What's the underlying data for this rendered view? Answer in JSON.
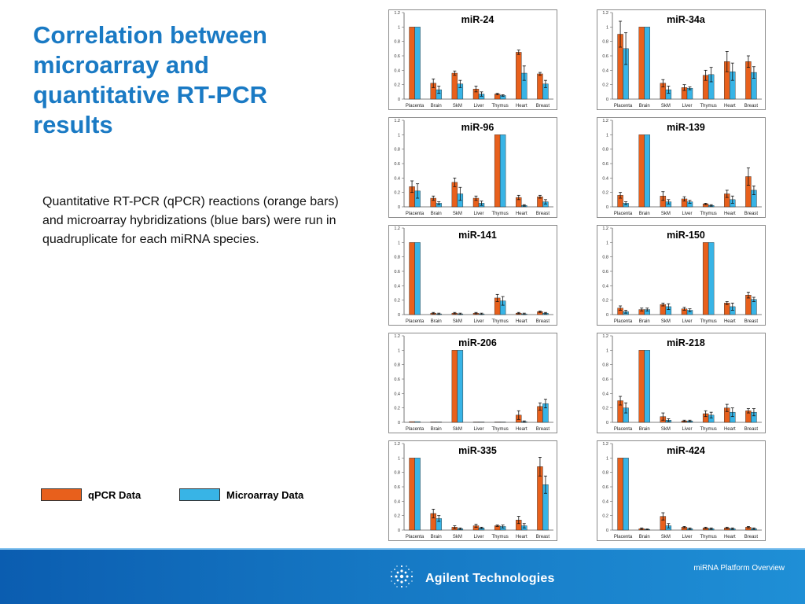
{
  "slide": {
    "title": "Correlation between microarray and quantitative RT-PCR results",
    "description": "Quantitative RT-PCR (qPCR) reactions (orange bars) and microarray hybridizations (blue bars) were run in quadruplicate for each miRNA species."
  },
  "legend": [
    {
      "label": "qPCR Data",
      "color": "#e8601c"
    },
    {
      "label": "Microarray Data",
      "color": "#38b4e6"
    }
  ],
  "colors": {
    "qpcr": "#e8601c",
    "microarray": "#38b4e6",
    "title": "#1a7ac4",
    "footer": "#1577c3"
  },
  "footer": {
    "brand": "Agilent Technologies",
    "caption": "miRNA Platform Overview",
    "logo_icon": "agilent-spark-icon"
  },
  "chart_data": [
    {
      "type": "bar",
      "title": "miR-24",
      "ylim": [
        0,
        1.2
      ],
      "yticks": [
        0,
        0.2,
        0.4,
        0.6,
        0.8,
        1,
        1.2
      ],
      "categories": [
        "Placenta",
        "Brain",
        "SkM",
        "Liver",
        "Thymus",
        "Heart",
        "Breast"
      ],
      "series": [
        {
          "values": [
            1,
            0.22,
            0.36,
            0.14,
            0.07,
            0.65,
            0.35
          ],
          "errors": [
            0,
            0.06,
            0.03,
            0.04,
            0.01,
            0.03,
            0.02
          ]
        },
        {
          "values": [
            1,
            0.13,
            0.21,
            0.07,
            0.05,
            0.36,
            0.21
          ],
          "errors": [
            0,
            0.05,
            0.05,
            0.03,
            0.01,
            0.1,
            0.05
          ]
        }
      ]
    },
    {
      "type": "bar",
      "title": "miR-34a",
      "ylim": [
        0,
        1.2
      ],
      "yticks": [
        0,
        0.2,
        0.4,
        0.6,
        0.8,
        1,
        1.2
      ],
      "categories": [
        "Placenta",
        "Brain",
        "SkM",
        "Liver",
        "Thymus",
        "Heart",
        "Breast"
      ],
      "series": [
        {
          "values": [
            0.9,
            1,
            0.22,
            0.16,
            0.33,
            0.52,
            0.52
          ],
          "errors": [
            0.18,
            0,
            0.05,
            0.04,
            0.07,
            0.14,
            0.08
          ]
        },
        {
          "values": [
            0.7,
            1,
            0.13,
            0.15,
            0.34,
            0.38,
            0.37
          ],
          "errors": [
            0.22,
            0,
            0.05,
            0.02,
            0.1,
            0.12,
            0.08
          ]
        }
      ]
    },
    {
      "type": "bar",
      "title": "miR-96",
      "ylim": [
        0,
        1.2
      ],
      "yticks": [
        0,
        0.2,
        0.4,
        0.6,
        0.8,
        1,
        1.2
      ],
      "categories": [
        "Placenta",
        "Brain",
        "SkM",
        "Liver",
        "Thymus",
        "Heart",
        "Breast"
      ],
      "series": [
        {
          "values": [
            0.28,
            0.12,
            0.34,
            0.12,
            1,
            0.13,
            0.14
          ],
          "errors": [
            0.08,
            0.03,
            0.06,
            0.03,
            0,
            0.03,
            0.02
          ]
        },
        {
          "values": [
            0.22,
            0.05,
            0.18,
            0.05,
            1,
            0.02,
            0.07
          ],
          "errors": [
            0.1,
            0.02,
            0.09,
            0.03,
            0,
            0.01,
            0.03
          ]
        }
      ]
    },
    {
      "type": "bar",
      "title": "miR-139",
      "ylim": [
        0,
        1.2
      ],
      "yticks": [
        0,
        0.2,
        0.4,
        0.6,
        0.8,
        1,
        1.2
      ],
      "categories": [
        "Placenta",
        "Brain",
        "SkM",
        "Liver",
        "Thymus",
        "Heart",
        "Breast"
      ],
      "series": [
        {
          "values": [
            0.16,
            1,
            0.15,
            0.11,
            0.04,
            0.18,
            0.42
          ],
          "errors": [
            0.04,
            0,
            0.06,
            0.03,
            0.01,
            0.05,
            0.12
          ]
        },
        {
          "values": [
            0.05,
            1,
            0.07,
            0.07,
            0.02,
            0.1,
            0.23
          ],
          "errors": [
            0.02,
            0,
            0.03,
            0.02,
            0.01,
            0.05,
            0.06
          ]
        }
      ]
    },
    {
      "type": "bar",
      "title": "miR-141",
      "ylim": [
        0,
        1.2
      ],
      "yticks": [
        0,
        0.2,
        0.4,
        0.6,
        0.8,
        1,
        1.2
      ],
      "categories": [
        "Placenta",
        "Brain",
        "SkM",
        "Liver",
        "Thymus",
        "Heart",
        "Breast"
      ],
      "series": [
        {
          "values": [
            1,
            0.02,
            0.02,
            0.02,
            0.23,
            0.02,
            0.04
          ],
          "errors": [
            0,
            0.01,
            0.01,
            0.01,
            0.05,
            0.01,
            0.01
          ]
        },
        {
          "values": [
            1,
            0.01,
            0.01,
            0.01,
            0.19,
            0.01,
            0.02
          ],
          "errors": [
            0,
            0.01,
            0.01,
            0.01,
            0.06,
            0.01,
            0.01
          ]
        }
      ]
    },
    {
      "type": "bar",
      "title": "miR-150",
      "ylim": [
        0,
        1.2
      ],
      "yticks": [
        0,
        0.2,
        0.4,
        0.6,
        0.8,
        1,
        1.2
      ],
      "categories": [
        "Placenta",
        "Brain",
        "SkM",
        "Liver",
        "Thymus",
        "Heart",
        "Breast"
      ],
      "series": [
        {
          "values": [
            0.09,
            0.07,
            0.14,
            0.08,
            1,
            0.16,
            0.27
          ],
          "errors": [
            0.03,
            0.02,
            0.02,
            0.02,
            0,
            0.02,
            0.04
          ]
        },
        {
          "values": [
            0.04,
            0.07,
            0.11,
            0.06,
            1,
            0.11,
            0.21
          ],
          "errors": [
            0.02,
            0.02,
            0.04,
            0.02,
            0,
            0.05,
            0.03
          ]
        }
      ]
    },
    {
      "type": "bar",
      "title": "miR-206",
      "ylim": [
        0,
        1.2
      ],
      "yticks": [
        0,
        0.2,
        0.4,
        0.6,
        0.8,
        1,
        1.2
      ],
      "categories": [
        "Placenta",
        "Brain",
        "SkM",
        "Liver",
        "Thymus",
        "Heart",
        "Breast"
      ],
      "series": [
        {
          "values": [
            0.01,
            0.005,
            1,
            0.005,
            0.005,
            0.1,
            0.22
          ],
          "errors": [
            0,
            0,
            0,
            0,
            0,
            0.06,
            0.05
          ]
        },
        {
          "values": [
            0.01,
            0.005,
            1,
            0.005,
            0.005,
            0.01,
            0.26
          ],
          "errors": [
            0,
            0,
            0,
            0,
            0,
            0.01,
            0.06
          ]
        }
      ]
    },
    {
      "type": "bar",
      "title": "miR-218",
      "ylim": [
        0,
        1.2
      ],
      "yticks": [
        0,
        0.2,
        0.4,
        0.6,
        0.8,
        1,
        1.2
      ],
      "categories": [
        "Placenta",
        "Brain",
        "SkM",
        "Liver",
        "Thymus",
        "Heart",
        "Breast"
      ],
      "series": [
        {
          "values": [
            0.3,
            1,
            0.08,
            0.02,
            0.12,
            0.2,
            0.16
          ],
          "errors": [
            0.06,
            0,
            0.05,
            0.01,
            0.04,
            0.05,
            0.03
          ]
        },
        {
          "values": [
            0.2,
            1,
            0.03,
            0.02,
            0.1,
            0.14,
            0.14
          ],
          "errors": [
            0.07,
            0,
            0.02,
            0.01,
            0.04,
            0.06,
            0.05
          ]
        }
      ]
    },
    {
      "type": "bar",
      "title": "miR-335",
      "ylim": [
        0,
        1.2
      ],
      "yticks": [
        0,
        0.2,
        0.4,
        0.6,
        0.8,
        1,
        1.2
      ],
      "categories": [
        "Placenta",
        "Brain",
        "SkM",
        "Liver",
        "Thymus",
        "Heart",
        "Breast"
      ],
      "series": [
        {
          "values": [
            1,
            0.23,
            0.04,
            0.06,
            0.06,
            0.14,
            0.88
          ],
          "errors": [
            0,
            0.06,
            0.02,
            0.02,
            0.01,
            0.05,
            0.13
          ]
        },
        {
          "values": [
            1,
            0.16,
            0.02,
            0.03,
            0.05,
            0.06,
            0.63
          ],
          "errors": [
            0,
            0.04,
            0.01,
            0.01,
            0.02,
            0.03,
            0.12
          ]
        }
      ]
    },
    {
      "type": "bar",
      "title": "miR-424",
      "ylim": [
        0,
        1.2
      ],
      "yticks": [
        0,
        0.2,
        0.4,
        0.6,
        0.8,
        1,
        1.2
      ],
      "categories": [
        "Placenta",
        "Brain",
        "SkM",
        "Liver",
        "Thymus",
        "Heart",
        "Breast"
      ],
      "series": [
        {
          "values": [
            1,
            0.02,
            0.19,
            0.04,
            0.03,
            0.03,
            0.04
          ],
          "errors": [
            0,
            0.01,
            0.05,
            0.01,
            0.01,
            0.01,
            0.01
          ]
        },
        {
          "values": [
            1,
            0.01,
            0.06,
            0.02,
            0.02,
            0.02,
            0.02
          ],
          "errors": [
            0,
            0.005,
            0.03,
            0.01,
            0.01,
            0.01,
            0.01
          ]
        }
      ]
    }
  ]
}
